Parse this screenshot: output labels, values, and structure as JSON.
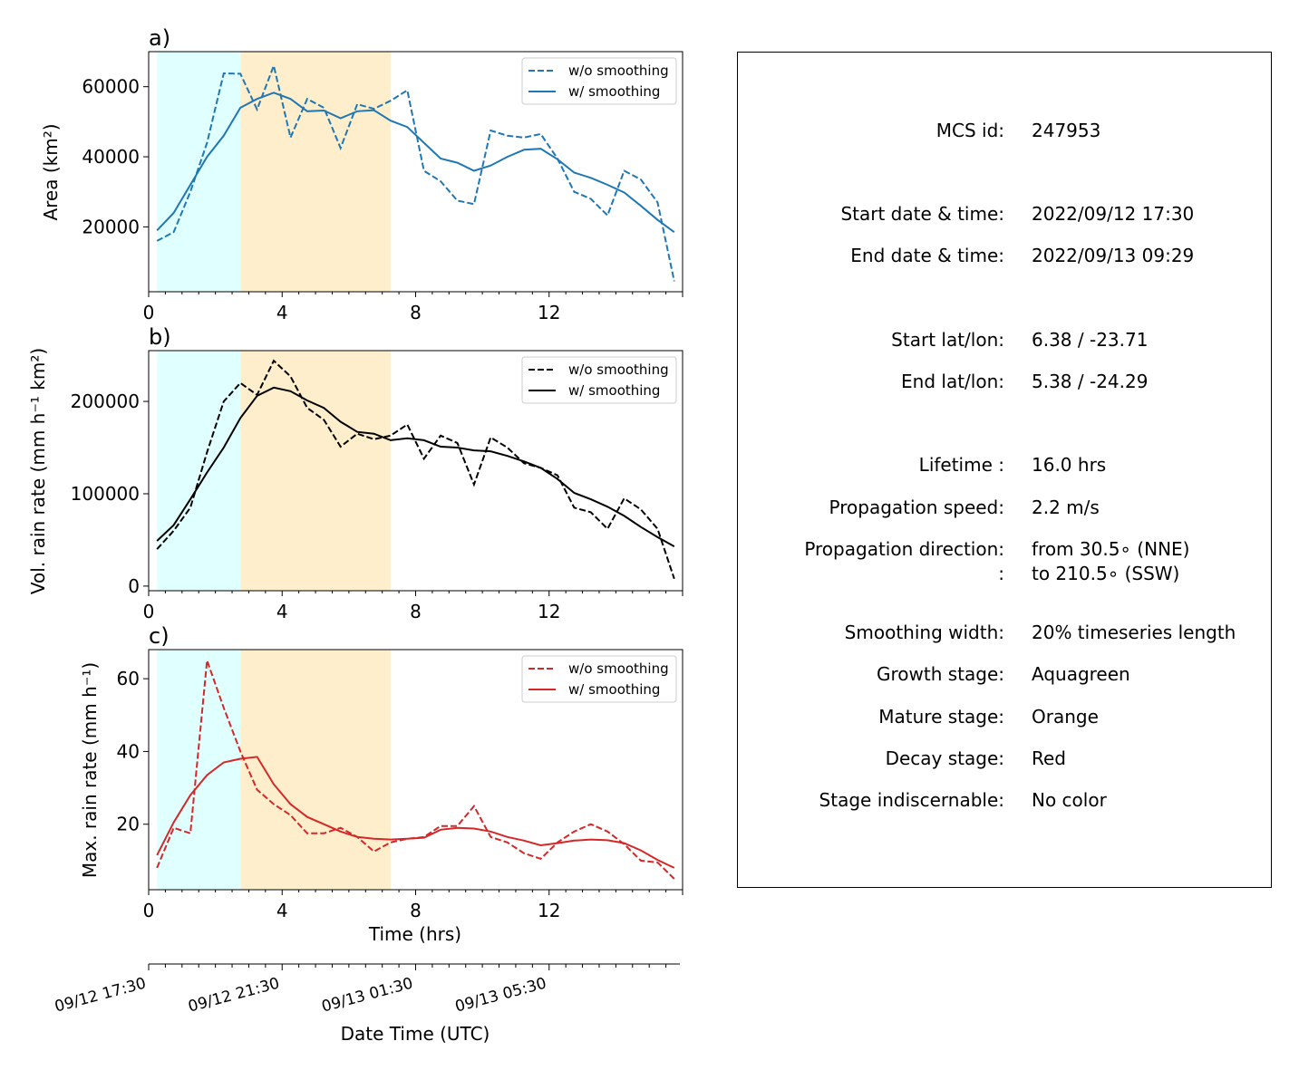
{
  "colors": {
    "growth_shade": "#e0ffff",
    "mature_shade": "#ffeecc",
    "area": "#1f77b4",
    "volrain": "#000000",
    "maxrain": "#d62728"
  },
  "chart_data": [
    {
      "id": "area",
      "type": "line",
      "panel_label": "a)",
      "ylabel": "Area  (km²)",
      "xlim": [
        0,
        16.0
      ],
      "ylim": [
        1500,
        70000
      ],
      "yticks": [
        20000,
        40000,
        60000
      ],
      "xticks": [
        0,
        4,
        8,
        12
      ],
      "shaded_regions": [
        {
          "stage": "growth",
          "x": [
            0.25,
            2.75
          ]
        },
        {
          "stage": "mature",
          "x": [
            2.75,
            7.25
          ]
        }
      ],
      "legend_loc": "upper right",
      "x": [
        0.25,
        0.75,
        1.25,
        1.75,
        2.25,
        2.75,
        3.25,
        3.75,
        4.25,
        4.75,
        5.25,
        5.75,
        6.25,
        6.75,
        7.25,
        7.75,
        8.25,
        8.75,
        9.25,
        9.75,
        10.25,
        10.75,
        11.25,
        11.75,
        12.25,
        12.75,
        13.25,
        13.75,
        14.25,
        14.75,
        15.25,
        15.75
      ],
      "series": [
        {
          "name": "w/o smoothing",
          "style": "dashed",
          "values": [
            16000,
            18500,
            30000,
            44000,
            63800,
            63700,
            53500,
            66000,
            45500,
            56500,
            54000,
            42500,
            55000,
            53700,
            56000,
            59000,
            36000,
            33000,
            27500,
            26500,
            47500,
            46000,
            45500,
            46500,
            39500,
            30000,
            28000,
            23300,
            36000,
            33500,
            27000,
            4500
          ]
        },
        {
          "name": "w/ smoothing",
          "style": "solid",
          "values": [
            19000,
            24000,
            32000,
            40000,
            46000,
            54000,
            56500,
            58300,
            56500,
            53000,
            53200,
            51000,
            53000,
            53300,
            50300,
            48500,
            44000,
            39500,
            38300,
            36000,
            37500,
            40000,
            42000,
            42300,
            39300,
            35500,
            34000,
            32000,
            29800,
            26000,
            22000,
            18500
          ]
        }
      ]
    },
    {
      "id": "volrain",
      "type": "line",
      "panel_label": "b)",
      "ylabel": "Vol. rain rate (mm h⁻¹ km²)",
      "xlim": [
        0,
        16.0
      ],
      "ylim": [
        -5000,
        255000
      ],
      "yticks": [
        0,
        100000,
        200000
      ],
      "xticks": [
        0,
        4,
        8,
        12
      ],
      "shaded_regions": [
        {
          "stage": "growth",
          "x": [
            0.25,
            2.75
          ]
        },
        {
          "stage": "mature",
          "x": [
            2.75,
            7.25
          ]
        }
      ],
      "legend_loc": "upper right",
      "x": [
        0.25,
        0.75,
        1.25,
        1.75,
        2.25,
        2.75,
        3.25,
        3.75,
        4.25,
        4.75,
        5.25,
        5.75,
        6.25,
        6.75,
        7.25,
        7.75,
        8.25,
        8.75,
        9.25,
        9.75,
        10.25,
        10.75,
        11.25,
        11.75,
        12.25,
        12.75,
        13.25,
        13.75,
        14.25,
        14.75,
        15.25,
        15.75
      ],
      "series": [
        {
          "name": "w/o smoothing",
          "style": "dashed",
          "values": [
            40000,
            60000,
            85000,
            145000,
            200000,
            220000,
            207000,
            244000,
            227000,
            193000,
            180000,
            151000,
            165000,
            159000,
            163000,
            175000,
            138000,
            163000,
            155000,
            110000,
            161000,
            150000,
            133000,
            128000,
            120000,
            85000,
            80000,
            62000,
            95000,
            83000,
            62000,
            8000
          ]
        },
        {
          "name": "w/ smoothing",
          "style": "solid",
          "values": [
            49000,
            66000,
            94000,
            123000,
            150000,
            182000,
            206000,
            215000,
            211000,
            201000,
            193000,
            178000,
            167000,
            165000,
            158000,
            160000,
            158000,
            151000,
            150000,
            147000,
            146000,
            141000,
            135000,
            128000,
            116000,
            101000,
            94000,
            86000,
            76000,
            64000,
            53000,
            43000
          ]
        }
      ]
    },
    {
      "id": "maxrain",
      "type": "line",
      "panel_label": "c)",
      "ylabel": "Max. rain rate  (mm h⁻¹)",
      "xlabel": "Time (hrs)",
      "xlim": [
        0,
        16.0
      ],
      "ylim": [
        2,
        68
      ],
      "yticks": [
        20,
        40,
        60
      ],
      "xticks": [
        0,
        4,
        8,
        12
      ],
      "shaded_regions": [
        {
          "stage": "growth",
          "x": [
            0.25,
            2.75
          ]
        },
        {
          "stage": "mature",
          "x": [
            2.75,
            7.25
          ]
        }
      ],
      "legend_loc": "upper right",
      "x": [
        0.25,
        0.75,
        1.25,
        1.75,
        2.25,
        2.75,
        3.25,
        3.75,
        4.25,
        4.75,
        5.25,
        5.75,
        6.25,
        6.75,
        7.25,
        7.75,
        8.25,
        8.75,
        9.25,
        9.75,
        10.25,
        10.75,
        11.25,
        11.75,
        12.25,
        12.75,
        13.25,
        13.75,
        14.25,
        14.75,
        15.25,
        15.75
      ],
      "series": [
        {
          "name": "w/o smoothing",
          "style": "dashed",
          "values": [
            8,
            19,
            17.5,
            65,
            52,
            40,
            29.5,
            25.5,
            22.5,
            17.5,
            17.5,
            19,
            16.5,
            12.5,
            15,
            16,
            16.5,
            19.5,
            19.5,
            25,
            16.5,
            15,
            12,
            10.5,
            15,
            18,
            20,
            18,
            14.5,
            10,
            9.5,
            5
          ]
        },
        {
          "name": "w/ smoothing",
          "style": "solid",
          "values": [
            11.5,
            20.5,
            28,
            33.5,
            37,
            38,
            38.5,
            31,
            25.5,
            22,
            20,
            18,
            16.5,
            16,
            15.8,
            16,
            16.3,
            18.5,
            19,
            18.8,
            18,
            16.5,
            15.5,
            14.2,
            14.8,
            15.5,
            15.8,
            15.6,
            14.8,
            12.8,
            10.2,
            8
          ]
        }
      ]
    }
  ],
  "datetime_axis": {
    "xlabel": "Date Time (UTC)",
    "ticks": [
      {
        "x": 0,
        "label": "09/12 17:30"
      },
      {
        "x": 4,
        "label": "09/12 21:30"
      },
      {
        "x": 8,
        "label": "09/13 01:30"
      },
      {
        "x": 12,
        "label": "09/13 05:30"
      }
    ],
    "minor_step": 0.5
  },
  "info": {
    "mcs_id": {
      "label": "MCS id:",
      "value": "247953"
    },
    "start_time": {
      "label": "Start date & time:",
      "value": "2022/09/12 17:30"
    },
    "end_time": {
      "label": "End date & time:",
      "value": "2022/09/13 09:29"
    },
    "start_latlon": {
      "label": "Start lat/lon:",
      "value": "6.38 / -23.71"
    },
    "end_latlon": {
      "label": "End lat/lon:",
      "value": "5.38 / -24.29"
    },
    "lifetime": {
      "label": "Lifetime :",
      "value": "16.0 hrs"
    },
    "speed": {
      "label": "Propagation speed:",
      "value": "2.2 m/s"
    },
    "direction": {
      "label": "Propagation direction:",
      "value": "from  30.5∘ (NNE)"
    },
    "direction2": {
      "label": ":",
      "value": "to   210.5∘ (SSW)"
    },
    "smoothing": {
      "label": "Smoothing width:",
      "value": "20% timeseries length"
    },
    "growth": {
      "label": "Growth stage:",
      "value": "Aquagreen"
    },
    "mature": {
      "label": "Mature stage:",
      "value": "Orange"
    },
    "decay": {
      "label": "Decay stage:",
      "value": "Red"
    },
    "indiscernable": {
      "label": "Stage indiscernable:",
      "value": "No color"
    }
  }
}
